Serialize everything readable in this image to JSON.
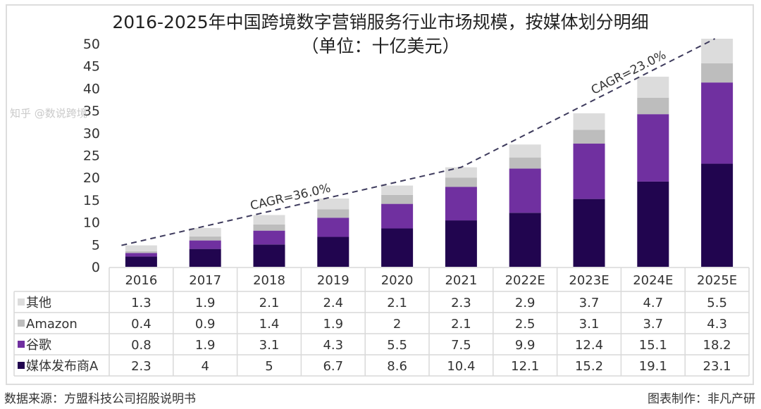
{
  "chart_data": {
    "type": "bar",
    "stacked": true,
    "title": "2016-2025年中国跨境数字营销服务行业市场规模，按媒体划分明细",
    "subtitle": "（单位：十亿美元）",
    "categories": [
      "2016",
      "2017",
      "2018",
      "2019",
      "2020",
      "2021",
      "2022E",
      "2023E",
      "2024E",
      "2025E"
    ],
    "series": [
      {
        "name": "媒体发布商A",
        "color": "#21054f",
        "values": [
          2.3,
          4,
          5,
          6.7,
          8.6,
          10.4,
          12.1,
          15.2,
          19.1,
          23.1
        ]
      },
      {
        "name": "谷歌",
        "color": "#7030a0",
        "values": [
          0.8,
          1.9,
          3.1,
          4.3,
          5.5,
          7.5,
          9.9,
          12.4,
          15.1,
          18.2
        ]
      },
      {
        "name": "Amazon",
        "color": "#bdbdbd",
        "values": [
          0.4,
          0.9,
          1.4,
          1.9,
          2.0,
          2.1,
          2.5,
          3.1,
          3.7,
          4.3
        ]
      },
      {
        "name": "其他",
        "color": "#dcdcdc",
        "values": [
          1.3,
          1.9,
          2.1,
          2.4,
          2.1,
          2.3,
          2.9,
          3.7,
          4.7,
          5.5
        ]
      }
    ],
    "table_row_order": [
      "其他",
      "Amazon",
      "谷歌",
      "媒体发布商A"
    ],
    "ylim": [
      0,
      50
    ],
    "yticks": [
      0,
      5,
      10,
      15,
      20,
      25,
      30,
      35,
      40,
      45,
      50
    ],
    "grid": false,
    "legend": "data-table",
    "annotations": [
      {
        "text": "CAGR=36.0%",
        "from": "2016",
        "to": "2021"
      },
      {
        "text": "CAGR=23.0%",
        "from": "2021",
        "to": "2025E"
      }
    ],
    "trend_line_color": "#3d3a5c"
  },
  "footer": {
    "source": "数据来源：方盟科技公司招股说明书",
    "credit": "图表制作：非凡产研",
    "watermark": "知乎 @数说跨境"
  }
}
